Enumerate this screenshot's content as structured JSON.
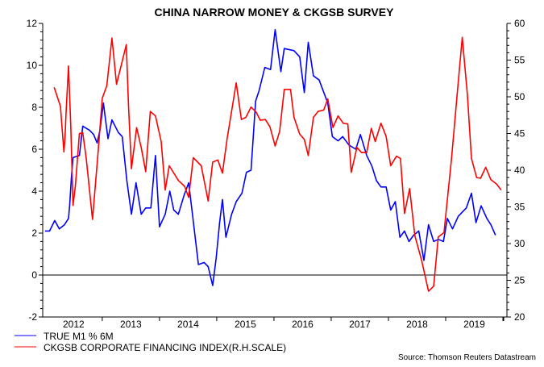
{
  "chart_data": {
    "type": "line",
    "title": "CHINA NARROW MONEY & CKGSB SURVEY",
    "source": "Source: Thomson Reuters Datastream",
    "x_ticks": [
      "2012",
      "2013",
      "2014",
      "2015",
      "2016",
      "2017",
      "2018",
      "2019"
    ],
    "xlim": [
      2011.96,
      2020.07
    ],
    "left_axis": {
      "ylim": [
        -2,
        12
      ],
      "ticks": [
        "12",
        "10",
        "8",
        "6",
        "4",
        "2",
        "0",
        "-2"
      ]
    },
    "right_axis": {
      "ylim": [
        20,
        60
      ],
      "ticks": [
        "60",
        "55",
        "50",
        "45",
        "40",
        "35",
        "30",
        "25",
        "20"
      ]
    },
    "reference_line": {
      "axis": "left",
      "value": 0
    },
    "grid": false,
    "legend_position": "bottom-left",
    "colors": {
      "m1": "#0000ff",
      "ckgsb": "#ff0000"
    },
    "series": [
      {
        "name": "TRUE M1 % 6M",
        "axis": "left",
        "color": "#0000ff",
        "points": [
          [
            2012.0,
            2.1
          ],
          [
            2012.08,
            2.1
          ],
          [
            2012.17,
            2.6
          ],
          [
            2012.25,
            2.2
          ],
          [
            2012.34,
            2.4
          ],
          [
            2012.41,
            2.7
          ],
          [
            2012.43,
            3.3
          ],
          [
            2012.46,
            4.6
          ],
          [
            2012.49,
            5.6
          ],
          [
            2012.6,
            5.7
          ],
          [
            2012.66,
            7.1
          ],
          [
            2012.78,
            6.9
          ],
          [
            2012.85,
            6.7
          ],
          [
            2012.91,
            6.3
          ],
          [
            2012.96,
            6.9
          ],
          [
            2013.02,
            8.2
          ],
          [
            2013.1,
            6.5
          ],
          [
            2013.17,
            7.4
          ],
          [
            2013.28,
            6.8
          ],
          [
            2013.35,
            6.6
          ],
          [
            2013.43,
            4.5
          ],
          [
            2013.51,
            2.9
          ],
          [
            2013.59,
            4.4
          ],
          [
            2013.68,
            2.9
          ],
          [
            2013.76,
            3.2
          ],
          [
            2013.85,
            3.2
          ],
          [
            2013.93,
            5.7
          ],
          [
            2014.0,
            2.3
          ],
          [
            2014.1,
            2.9
          ],
          [
            2014.18,
            4.0
          ],
          [
            2014.25,
            3.1
          ],
          [
            2014.33,
            2.9
          ],
          [
            2014.43,
            3.8
          ],
          [
            2014.51,
            4.4
          ],
          [
            2014.58,
            2.8
          ],
          [
            2014.68,
            0.5
          ],
          [
            2014.78,
            0.6
          ],
          [
            2014.85,
            0.4
          ],
          [
            2014.93,
            -0.5
          ],
          [
            2014.99,
            0.8
          ],
          [
            2015.05,
            2.5
          ],
          [
            2015.1,
            3.6
          ],
          [
            2015.16,
            1.8
          ],
          [
            2015.26,
            2.9
          ],
          [
            2015.34,
            3.5
          ],
          [
            2015.44,
            3.9
          ],
          [
            2015.52,
            4.9
          ],
          [
            2015.6,
            5.0
          ],
          [
            2015.68,
            8.3
          ],
          [
            2015.74,
            8.8
          ],
          [
            2015.84,
            9.9
          ],
          [
            2015.94,
            9.8
          ],
          [
            2016.02,
            11.7
          ],
          [
            2016.12,
            9.7
          ],
          [
            2016.18,
            10.8
          ],
          [
            2016.35,
            10.7
          ],
          [
            2016.45,
            10.4
          ],
          [
            2016.53,
            8.7
          ],
          [
            2016.6,
            11.1
          ],
          [
            2016.69,
            9.5
          ],
          [
            2016.79,
            9.3
          ],
          [
            2016.94,
            8.2
          ],
          [
            2017.02,
            6.6
          ],
          [
            2017.12,
            6.4
          ],
          [
            2017.2,
            6.6
          ],
          [
            2017.31,
            6.2
          ],
          [
            2017.43,
            6.0
          ],
          [
            2017.51,
            6.7
          ],
          [
            2017.62,
            5.7
          ],
          [
            2017.71,
            5.2
          ],
          [
            2017.79,
            4.5
          ],
          [
            2017.87,
            4.2
          ],
          [
            2017.96,
            4.2
          ],
          [
            2018.04,
            3.1
          ],
          [
            2018.12,
            3.5
          ],
          [
            2018.2,
            1.8
          ],
          [
            2018.28,
            2.1
          ],
          [
            2018.36,
            1.6
          ],
          [
            2018.44,
            1.9
          ],
          [
            2018.53,
            2.1
          ],
          [
            2018.62,
            0.7
          ],
          [
            2018.7,
            2.4
          ],
          [
            2018.79,
            1.6
          ],
          [
            2018.87,
            1.7
          ],
          [
            2018.96,
            1.6
          ],
          [
            2019.03,
            2.7
          ],
          [
            2019.12,
            2.2
          ],
          [
            2019.22,
            2.8
          ],
          [
            2019.36,
            3.2
          ],
          [
            2019.45,
            3.9
          ],
          [
            2019.53,
            2.5
          ],
          [
            2019.62,
            3.3
          ],
          [
            2019.72,
            2.7
          ],
          [
            2019.79,
            2.4
          ],
          [
            2019.87,
            1.9
          ]
        ]
      },
      {
        "name": "CKGSB CORPORATE FINANCING INDEX(R.H.SCALE)",
        "axis": "right",
        "color": "#ff0000",
        "points": [
          [
            2012.16,
            51.3
          ],
          [
            2012.27,
            48.7
          ],
          [
            2012.33,
            42.5
          ],
          [
            2012.35,
            44.5
          ],
          [
            2012.37,
            48.1
          ],
          [
            2012.41,
            54.2
          ],
          [
            2012.42,
            52.1
          ],
          [
            2012.45,
            46.1
          ],
          [
            2012.49,
            35.2
          ],
          [
            2012.53,
            37.8
          ],
          [
            2012.6,
            45.0
          ],
          [
            2012.66,
            45.1
          ],
          [
            2012.72,
            41.6
          ],
          [
            2012.83,
            33.3
          ],
          [
            2012.93,
            42.7
          ],
          [
            2013.0,
            49.8
          ],
          [
            2013.08,
            51.5
          ],
          [
            2013.17,
            58.0
          ],
          [
            2013.25,
            51.7
          ],
          [
            2013.42,
            57.1
          ],
          [
            2013.46,
            48.7
          ],
          [
            2013.51,
            40.2
          ],
          [
            2013.6,
            45.8
          ],
          [
            2013.68,
            43.1
          ],
          [
            2013.76,
            39.8
          ],
          [
            2013.84,
            48.0
          ],
          [
            2013.93,
            47.4
          ],
          [
            2014.03,
            43.9
          ],
          [
            2014.1,
            37.3
          ],
          [
            2014.17,
            40.6
          ],
          [
            2014.33,
            38.6
          ],
          [
            2014.44,
            37.8
          ],
          [
            2014.51,
            36.3
          ],
          [
            2014.59,
            41.7
          ],
          [
            2014.73,
            40.6
          ],
          [
            2014.85,
            35.8
          ],
          [
            2014.93,
            41.1
          ],
          [
            2015.02,
            41.4
          ],
          [
            2015.1,
            39.6
          ],
          [
            2015.18,
            44.2
          ],
          [
            2015.34,
            51.9
          ],
          [
            2015.43,
            46.9
          ],
          [
            2015.51,
            47.2
          ],
          [
            2015.6,
            48.6
          ],
          [
            2015.69,
            47.9
          ],
          [
            2015.76,
            46.8
          ],
          [
            2015.85,
            46.9
          ],
          [
            2015.93,
            45.9
          ],
          [
            2016.02,
            43.3
          ],
          [
            2016.1,
            45.3
          ],
          [
            2016.18,
            51.0
          ],
          [
            2016.29,
            51.0
          ],
          [
            2016.35,
            47.2
          ],
          [
            2016.45,
            44.9
          ],
          [
            2016.53,
            44.2
          ],
          [
            2016.6,
            42.0
          ],
          [
            2016.69,
            47.2
          ],
          [
            2016.77,
            48.0
          ],
          [
            2016.87,
            48.2
          ],
          [
            2016.94,
            49.7
          ],
          [
            2017.03,
            45.8
          ],
          [
            2017.12,
            47.4
          ],
          [
            2017.21,
            46.4
          ],
          [
            2017.29,
            46.3
          ],
          [
            2017.35,
            39.7
          ],
          [
            2017.45,
            43.1
          ],
          [
            2017.53,
            42.4
          ],
          [
            2017.62,
            42.4
          ],
          [
            2017.7,
            45.7
          ],
          [
            2017.77,
            43.9
          ],
          [
            2017.87,
            46.4
          ],
          [
            2017.96,
            44.6
          ],
          [
            2018.04,
            40.6
          ],
          [
            2018.14,
            41.9
          ],
          [
            2018.21,
            41.6
          ],
          [
            2018.28,
            34.1
          ],
          [
            2018.37,
            37.5
          ],
          [
            2018.46,
            31.1
          ],
          [
            2018.58,
            27.7
          ],
          [
            2018.7,
            23.5
          ],
          [
            2018.79,
            24.2
          ],
          [
            2018.87,
            30.9
          ],
          [
            2018.97,
            31.5
          ],
          [
            2019.1,
            41.4
          ],
          [
            2019.22,
            52.0
          ],
          [
            2019.29,
            58.1
          ],
          [
            2019.38,
            50.2
          ],
          [
            2019.45,
            41.6
          ],
          [
            2019.54,
            39.0
          ],
          [
            2019.61,
            38.9
          ],
          [
            2019.7,
            40.4
          ],
          [
            2019.79,
            38.7
          ],
          [
            2019.89,
            38.1
          ],
          [
            2019.97,
            37.3
          ]
        ]
      }
    ]
  }
}
